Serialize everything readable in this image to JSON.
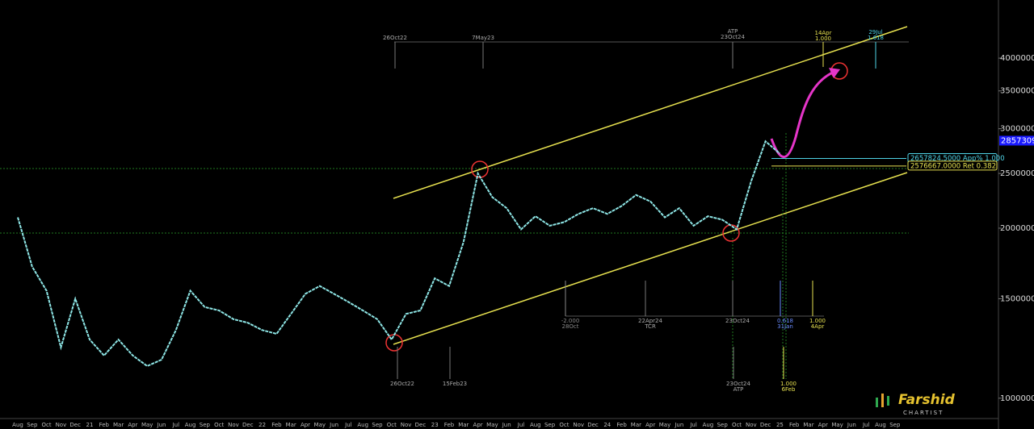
{
  "chart_data": {
    "type": "line",
    "log_scale": true,
    "categories": [
      "Aug",
      "Sep",
      "Oct",
      "Nov",
      "Dec",
      "21",
      "Feb",
      "Mar",
      "Apr",
      "May",
      "Jun",
      "Jul",
      "Aug",
      "Sep",
      "Oct",
      "Nov",
      "Dec",
      "22",
      "Feb",
      "Mar",
      "Apr",
      "May",
      "Jun",
      "Jul",
      "Aug",
      "Sep",
      "Oct",
      "Nov",
      "Dec",
      "23",
      "Feb",
      "Mar",
      "Apr",
      "May",
      "Jun",
      "Jul",
      "Aug",
      "Sep",
      "Oct",
      "Nov",
      "Dec",
      "24",
      "Feb",
      "Mar",
      "Apr",
      "May",
      "Jun",
      "Jul",
      "Aug",
      "Sep",
      "Oct",
      "Nov",
      "Dec",
      "25",
      "Feb",
      "Mar",
      "Apr",
      "May",
      "Jun",
      "Jul",
      "Aug",
      "Sep"
    ],
    "series": [
      {
        "color": "#8ee6e6",
        "values": [
          2090000,
          1710000,
          1550000,
          1230000,
          1500000,
          1270000,
          1190000,
          1270000,
          1190000,
          1140000,
          1170000,
          1320000,
          1550000,
          1450000,
          1430000,
          1380000,
          1360000,
          1320000,
          1300000,
          1410000,
          1530000,
          1580000,
          1530000,
          1480000,
          1430000,
          1380000,
          1270000,
          1410000,
          1430000,
          1630000,
          1580000,
          1890000,
          2500000,
          2270000,
          2170000,
          1990000,
          2100000,
          2020000,
          2050000,
          2120000,
          2170000,
          2120000,
          2190000,
          2290000,
          2230000,
          2090000,
          2170000,
          2020000,
          2100000,
          2070000,
          1990000,
          2420000,
          2850000,
          2710000,
          null,
          null,
          null,
          null,
          null,
          null,
          null,
          null
        ]
      }
    ],
    "ylim": [
      882000,
      5070000
    ],
    "yticks": [
      {
        "value": 1000000,
        "label": "1000000.0"
      },
      {
        "value": 1500000,
        "label": "1500000.0"
      },
      {
        "value": 2000000,
        "label": "2000000.0"
      },
      {
        "value": 2500000,
        "label": "2500000.0"
      },
      {
        "value": 3000000,
        "label": "3000000.0"
      },
      {
        "value": 3500000,
        "label": "3500000.0"
      },
      {
        "value": 4000000,
        "label": "4000000.0"
      }
    ],
    "price_marker": {
      "value": 2857309,
      "label": "2857309."
    },
    "levels": [
      {
        "value": 2657824.5,
        "label": "2657824.5000 App% 1.000",
        "color": "#4fd3e6"
      },
      {
        "value": 2576667,
        "label": "2576667.0000 Ret 0.382",
        "color": "#e6e04f"
      }
    ],
    "annotations": [
      {
        "lines": [
          "26Oct22"
        ],
        "color": "#aaaaaa"
      },
      {
        "lines": [
          "7May23"
        ],
        "color": "#aaaaaa"
      },
      {
        "lines": [
          "ATP",
          "23Oct24"
        ],
        "color": "#aaaaaa"
      },
      {
        "lines": [
          "14Apr",
          "1.000"
        ],
        "color": "#e6e04f"
      },
      {
        "lines": [
          "29Jul",
          "1.618"
        ],
        "color": "#4fd3e6"
      },
      {
        "lines": [
          "-2.000",
          "28Oct"
        ],
        "color": "#888888"
      },
      {
        "lines": [
          "22Apr24",
          "TCR"
        ],
        "color": "#aaaaaa"
      },
      {
        "lines": [
          "23Oct24"
        ],
        "color": "#aaaaaa"
      },
      {
        "lines": [
          "0.618",
          "31Jan"
        ],
        "color": "#6a8cff"
      },
      {
        "lines": [
          "1.000",
          "4Apr"
        ],
        "color": "#e6e04f"
      },
      {
        "lines": [
          "26Oct22"
        ],
        "color": "#aaaaaa"
      },
      {
        "lines": [
          "15Feb23"
        ],
        "color": "#aaaaaa"
      },
      {
        "lines": [
          "23Oct24",
          "ATP"
        ],
        "color": "#aaaaaa"
      },
      {
        "lines": [
          "1.000",
          "6Feb"
        ],
        "color": "#e6e04f"
      }
    ]
  },
  "logo": {
    "name": "Farshid",
    "subtitle": "CHARTIST"
  }
}
